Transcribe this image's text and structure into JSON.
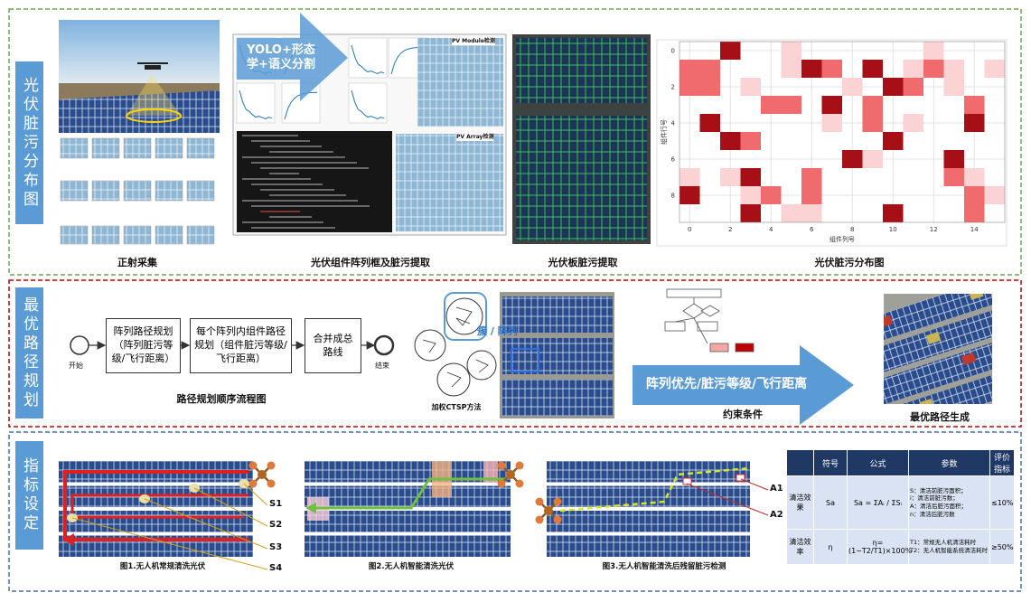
{
  "section1": {
    "label": "光伏脏污分布图",
    "captions": [
      "正射采集",
      "光伏组件阵列框及脏污提取",
      "光伏板脏污提取",
      "光伏脏污分布图"
    ],
    "arrow_text": "YOLO+形态学+语义分割",
    "module_title": "PV Module检测",
    "array_title": "PV Array检测",
    "heatmap": {
      "type": "heatmap",
      "xlabel": "组件列号",
      "ylabel": "组件行号",
      "xlim": [
        -0.5,
        15.5
      ],
      "ylim": [
        -0.5,
        9.5
      ],
      "xticks": [
        0,
        2,
        4,
        6,
        8,
        10,
        12,
        14
      ],
      "yticks": [
        0,
        2,
        4,
        6,
        8
      ],
      "level_colors": [
        "#fcd3d5",
        "#f06b6e",
        "#a50f15"
      ],
      "cells": [
        [
          2,
          0,
          3
        ],
        [
          5,
          0,
          1
        ],
        [
          12,
          0,
          1
        ],
        [
          0,
          1,
          2
        ],
        [
          1,
          1,
          2
        ],
        [
          5,
          1,
          1
        ],
        [
          6,
          1,
          3
        ],
        [
          7,
          1,
          2
        ],
        [
          9,
          1,
          3
        ],
        [
          11,
          1,
          1
        ],
        [
          12,
          1,
          2
        ],
        [
          13,
          1,
          1
        ],
        [
          15,
          1,
          1
        ],
        [
          0,
          2,
          2
        ],
        [
          1,
          2,
          2
        ],
        [
          3,
          2,
          1
        ],
        [
          8,
          2,
          1
        ],
        [
          10,
          2,
          3
        ],
        [
          11,
          2,
          2
        ],
        [
          13,
          2,
          1
        ],
        [
          4,
          3,
          2
        ],
        [
          5,
          3,
          2
        ],
        [
          7,
          3,
          3
        ],
        [
          9,
          3,
          2
        ],
        [
          14,
          3,
          2
        ],
        [
          1,
          4,
          3
        ],
        [
          7,
          4,
          1
        ],
        [
          9,
          4,
          2
        ],
        [
          11,
          4,
          1
        ],
        [
          14,
          4,
          3
        ],
        [
          2,
          5,
          3
        ],
        [
          3,
          5,
          2
        ],
        [
          10,
          5,
          3
        ],
        [
          8,
          6,
          3
        ],
        [
          9,
          6,
          1
        ],
        [
          13,
          6,
          3
        ],
        [
          0,
          7,
          1
        ],
        [
          2,
          7,
          1
        ],
        [
          3,
          7,
          3
        ],
        [
          6,
          7,
          2
        ],
        [
          13,
          7,
          2
        ],
        [
          14,
          7,
          1
        ],
        [
          0,
          8,
          3
        ],
        [
          3,
          8,
          1
        ],
        [
          4,
          8,
          2
        ],
        [
          6,
          8,
          2
        ],
        [
          14,
          8,
          2
        ],
        [
          15,
          8,
          1
        ],
        [
          3,
          9,
          3
        ],
        [
          5,
          9,
          1
        ],
        [
          6,
          9,
          1
        ],
        [
          10,
          9,
          3
        ],
        [
          14,
          9,
          2
        ]
      ]
    }
  },
  "section2": {
    "label": "最优路径规划",
    "start": "开始",
    "steps": [
      "阵列路径规划（阵列脏污等级/飞行距离）",
      "每个阵列内组件路径规划（组件脏污等级/飞行距离）",
      "合并成总路线"
    ],
    "end": "结束",
    "flow_caption": "路径规划顺序流程图",
    "cluster_label": "簇 / 阵列",
    "ctsp_caption": "加权CTSP方法",
    "arrow_text": "阵列优先/脏污等级/飞行距离",
    "constraint_caption": "约束条件",
    "result_caption": "最优路径生成"
  },
  "section3": {
    "label": "指标设定",
    "captions": [
      "图1.无人机常规清洗光伏",
      "图2.无人机智能清洗光伏",
      "图3.无人机智能清洗后残留脏污检测"
    ],
    "s_labels": [
      "S1",
      "S2",
      "S3",
      "S4"
    ],
    "a_labels": [
      "A1",
      "A2"
    ],
    "table": {
      "headers": [
        "符号",
        "公式",
        "参数",
        "评价指标"
      ],
      "rows": [
        {
          "name": "清洁效果",
          "symbol": "Sa",
          "formula": "Sa = ΣAᵢ / ΣSᵢ",
          "params": [
            "S：清洁前脏污面积；",
            "i：清洁前脏污数；",
            "A：清洁后脏污面积；",
            "n：清洁后脏污数"
          ],
          "target": "≤10%"
        },
        {
          "name": "清洁效率",
          "symbol": "η",
          "formula": "η=(1−T2/T1)×100%",
          "params": [
            "T1：常规无人机清洁耗时",
            "T2：无人机智能系统清洁耗时"
          ],
          "target": "≥50%"
        }
      ]
    }
  }
}
